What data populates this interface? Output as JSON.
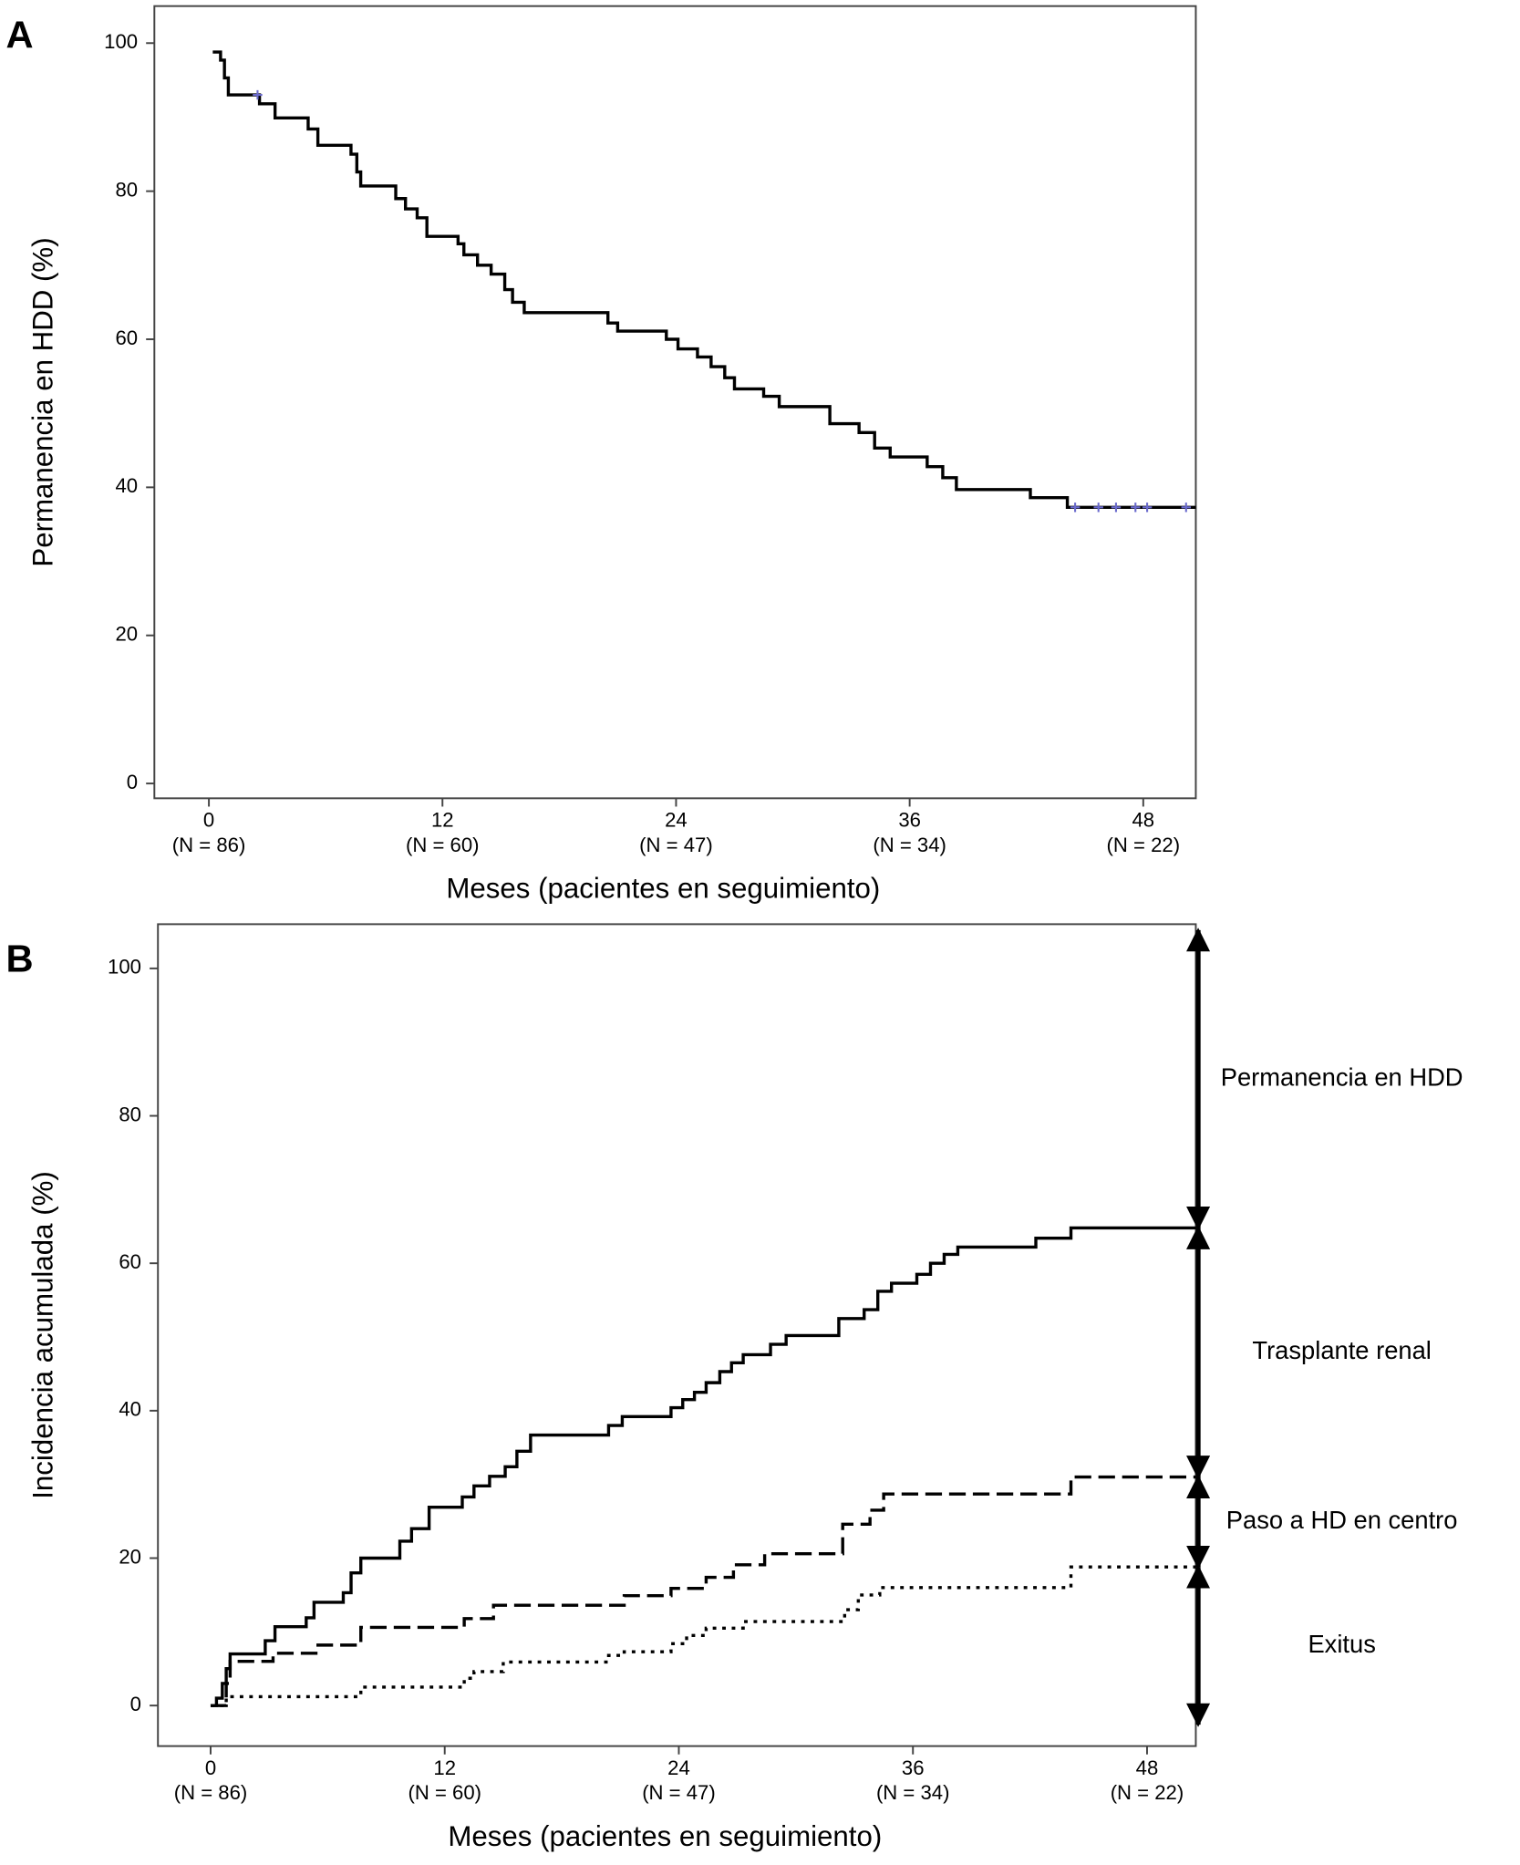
{
  "chart_data": [
    {
      "type": "line",
      "step": true,
      "panel_label": "A",
      "ylabel": "Permanencia en HDD (%)",
      "xlabel": "Meses (pacientes en seguimiento)",
      "xlim": [
        -2.8,
        50.7
      ],
      "ylim": [
        -2,
        105
      ],
      "xticks": [
        0,
        12,
        24,
        36,
        48
      ],
      "xtick_sublabels": [
        "(N = 86)",
        "(N = 60)",
        "(N = 47)",
        "(N = 34)",
        "(N = 22)"
      ],
      "yticks": [
        0,
        20,
        40,
        60,
        80,
        100
      ],
      "series": [
        {
          "color": "#000000",
          "dash": "solid",
          "x": [
            0.2,
            0.6,
            0.8,
            1.0,
            2.6,
            3.4,
            5.1,
            5.6,
            7.3,
            7.6,
            7.8,
            9.6,
            10.1,
            10.7,
            11.2,
            12.8,
            13.1,
            13.8,
            14.5,
            15.2,
            15.6,
            16.2,
            20.5,
            21.0,
            23.5,
            24.1,
            25.1,
            25.8,
            26.5,
            27.0,
            28.5,
            29.3,
            31.9,
            33.4,
            34.2,
            35.0,
            36.9,
            37.7,
            38.4,
            42.2,
            44.1,
            50.7
          ],
          "values": [
            98.8,
            97.7,
            95.3,
            93.0,
            91.8,
            89.9,
            88.4,
            86.2,
            85.0,
            82.6,
            80.7,
            79.0,
            77.6,
            76.4,
            73.9,
            72.9,
            71.4,
            70.0,
            68.8,
            66.7,
            65.0,
            63.6,
            62.2,
            61.1,
            60.0,
            58.7,
            57.6,
            56.3,
            54.8,
            53.3,
            52.3,
            50.9,
            48.6,
            47.4,
            45.3,
            44.1,
            42.8,
            41.3,
            39.7,
            38.6,
            37.3,
            37.3
          ]
        }
      ],
      "censored": {
        "color": "#6a6acd",
        "x": [
          2.5,
          44.5,
          45.7,
          46.6,
          47.6,
          48.2,
          50.2
        ],
        "values": [
          93.0,
          37.3,
          37.3,
          37.3,
          37.3,
          37.3,
          37.3
        ]
      }
    },
    {
      "type": "line",
      "step": true,
      "panel_label": "B",
      "ylabel": "Incidencia acumulada (%)",
      "xlabel": "Meses (pacientes en seguimiento)",
      "xlim": [
        -2.7,
        50.5
      ],
      "ylim": [
        -5.5,
        106
      ],
      "xticks": [
        0,
        12,
        24,
        36,
        48
      ],
      "xtick_sublabels": [
        "(N = 86)",
        "(N = 60)",
        "(N = 47)",
        "(N = 34)",
        "(N = 22)"
      ],
      "yticks": [
        0,
        20,
        40,
        60,
        80,
        100
      ],
      "series": [
        {
          "color": "#000000",
          "dash": "solid",
          "x": [
            0,
            0.3,
            0.6,
            0.8,
            1.0,
            2.8,
            3.3,
            4.9,
            5.3,
            6.8,
            7.2,
            7.7,
            9.7,
            10.3,
            11.2,
            12.9,
            13.5,
            14.3,
            15.1,
            15.7,
            16.4,
            20.4,
            21.1,
            23.6,
            24.2,
            24.8,
            25.4,
            26.1,
            26.7,
            27.3,
            28.7,
            29.5,
            32.2,
            33.5,
            34.2,
            34.9,
            36.2,
            36.9,
            37.6,
            38.3,
            42.3,
            44.1,
            50.5
          ],
          "values": [
            0,
            1,
            3,
            5,
            7,
            8.8,
            10.7,
            11.9,
            14.0,
            15.3,
            18.0,
            20.0,
            22.3,
            24.0,
            26.9,
            28.3,
            29.8,
            31.1,
            32.4,
            34.5,
            36.7,
            38.0,
            39.2,
            40.4,
            41.5,
            42.5,
            43.8,
            45.3,
            46.5,
            47.6,
            49.0,
            50.2,
            52.5,
            53.7,
            56.2,
            57.3,
            58.5,
            60.0,
            61.2,
            62.2,
            63.4,
            64.8,
            64.8
          ]
        },
        {
          "color": "#000000",
          "dash": "dashed",
          "x": [
            0,
            0.8,
            1.0,
            3.2,
            5.4,
            7.7,
            13.0,
            14.5,
            21.2,
            23.6,
            25.4,
            26.8,
            28.4,
            32.4,
            33.8,
            34.5,
            44.1,
            50.5
          ],
          "values": [
            0,
            3,
            6.0,
            7.1,
            8.2,
            10.6,
            11.8,
            13.6,
            14.9,
            15.9,
            17.4,
            19.1,
            20.6,
            24.6,
            26.5,
            28.7,
            31.0,
            31.0
          ]
        },
        {
          "color": "#000000",
          "dash": "dotted",
          "x": [
            0,
            0.8,
            7.7,
            13.0,
            13.5,
            15.0,
            20.4,
            21.2,
            23.6,
            24.4,
            25.4,
            27.3,
            32.5,
            33.2,
            34.3,
            44.1,
            50.5
          ],
          "values": [
            0,
            1.2,
            2.5,
            3.7,
            4.6,
            5.9,
            6.8,
            7.3,
            8.4,
            9.5,
            10.5,
            11.4,
            13.0,
            15.0,
            16.0,
            18.8,
            18.8
          ]
        }
      ],
      "annotations": [
        {
          "text": "Permanencia en HDD",
          "from": 64.8,
          "to": 105.2
        },
        {
          "text": "Trasplante renal",
          "from": 31.0,
          "to": 64.8
        },
        {
          "text": "Paso a HD en centro",
          "from": 18.8,
          "to": 31.0
        },
        {
          "text": "Exitus",
          "from": -2.6,
          "to": 18.8
        }
      ]
    }
  ]
}
